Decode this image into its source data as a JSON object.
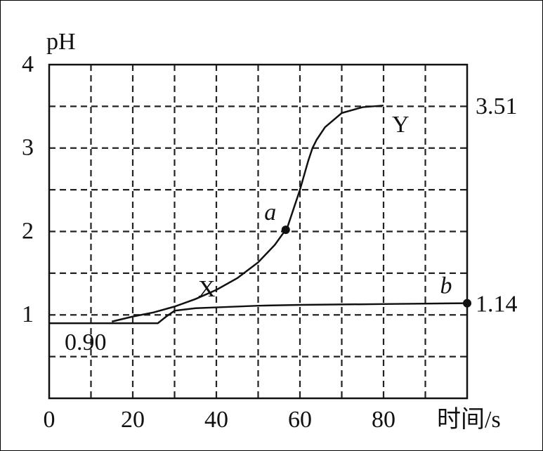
{
  "chart_data": {
    "type": "line",
    "y_label": "pH",
    "x_label": "时间/s",
    "xlim": [
      0,
      100
    ],
    "xticks": [
      0,
      20,
      40,
      60,
      80
    ],
    "ylim": [
      0,
      4
    ],
    "yticks": [
      1,
      2,
      3,
      4
    ],
    "grid": true,
    "color": "#111111",
    "series": [
      {
        "name": "Y",
        "color": "#111111",
        "x": [
          15,
          20,
          25,
          30,
          35,
          40,
          45,
          50,
          54,
          57,
          60,
          62,
          63,
          64,
          66,
          70,
          75,
          80
        ],
        "values": [
          0.92,
          0.98,
          1.03,
          1.1,
          1.19,
          1.3,
          1.44,
          1.63,
          1.84,
          2.05,
          2.5,
          2.85,
          3.0,
          3.1,
          3.25,
          3.42,
          3.49,
          3.51
        ]
      },
      {
        "name": "X",
        "color": "#111111",
        "x": [
          0,
          26,
          28,
          30,
          35,
          40,
          50,
          60,
          80,
          100
        ],
        "values": [
          0.9,
          0.9,
          0.98,
          1.05,
          1.08,
          1.09,
          1.11,
          1.12,
          1.13,
          1.14
        ]
      }
    ],
    "points": [
      {
        "label": "a",
        "x": 56.6,
        "y": 2.02
      },
      {
        "label": "b",
        "x": 100,
        "y": 1.14
      }
    ],
    "annotations": [
      {
        "text": "3.51",
        "value": 3.51
      },
      {
        "text": "1.14",
        "value": 1.14
      },
      {
        "text": "0.90",
        "value": 0.9
      }
    ]
  }
}
